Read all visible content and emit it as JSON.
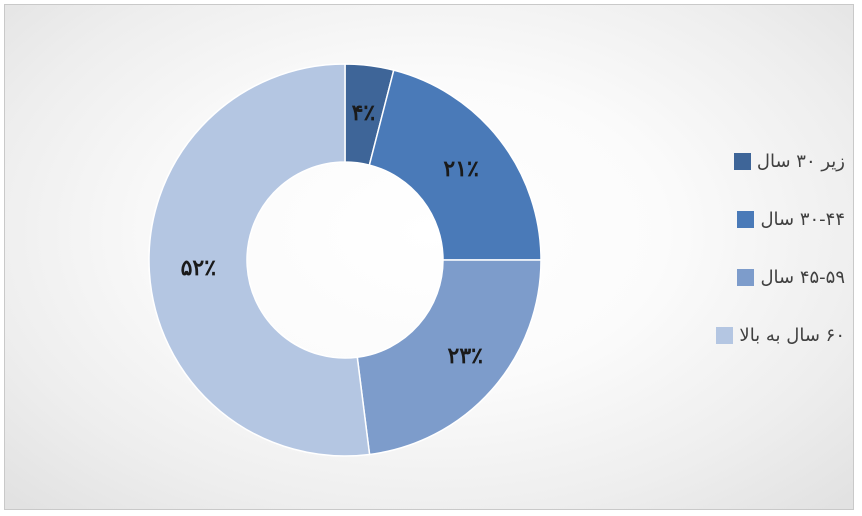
{
  "chart_data": {
    "type": "pie",
    "variant": "doughnut",
    "categories": [
      "زیر ۳۰ سال",
      "۳۰-۴۴ سال",
      "۴۵-۵۹ سال",
      "۶۰ سال به بالا"
    ],
    "values": [
      4,
      21,
      23,
      52
    ],
    "data_labels": [
      "۴٪",
      "۲۱٪",
      "۲۳٪",
      "۵۲٪"
    ],
    "colors": [
      "#3e6598",
      "#4a7ab8",
      "#7d9ccb",
      "#b4c6e2"
    ],
    "legend_position": "right"
  }
}
